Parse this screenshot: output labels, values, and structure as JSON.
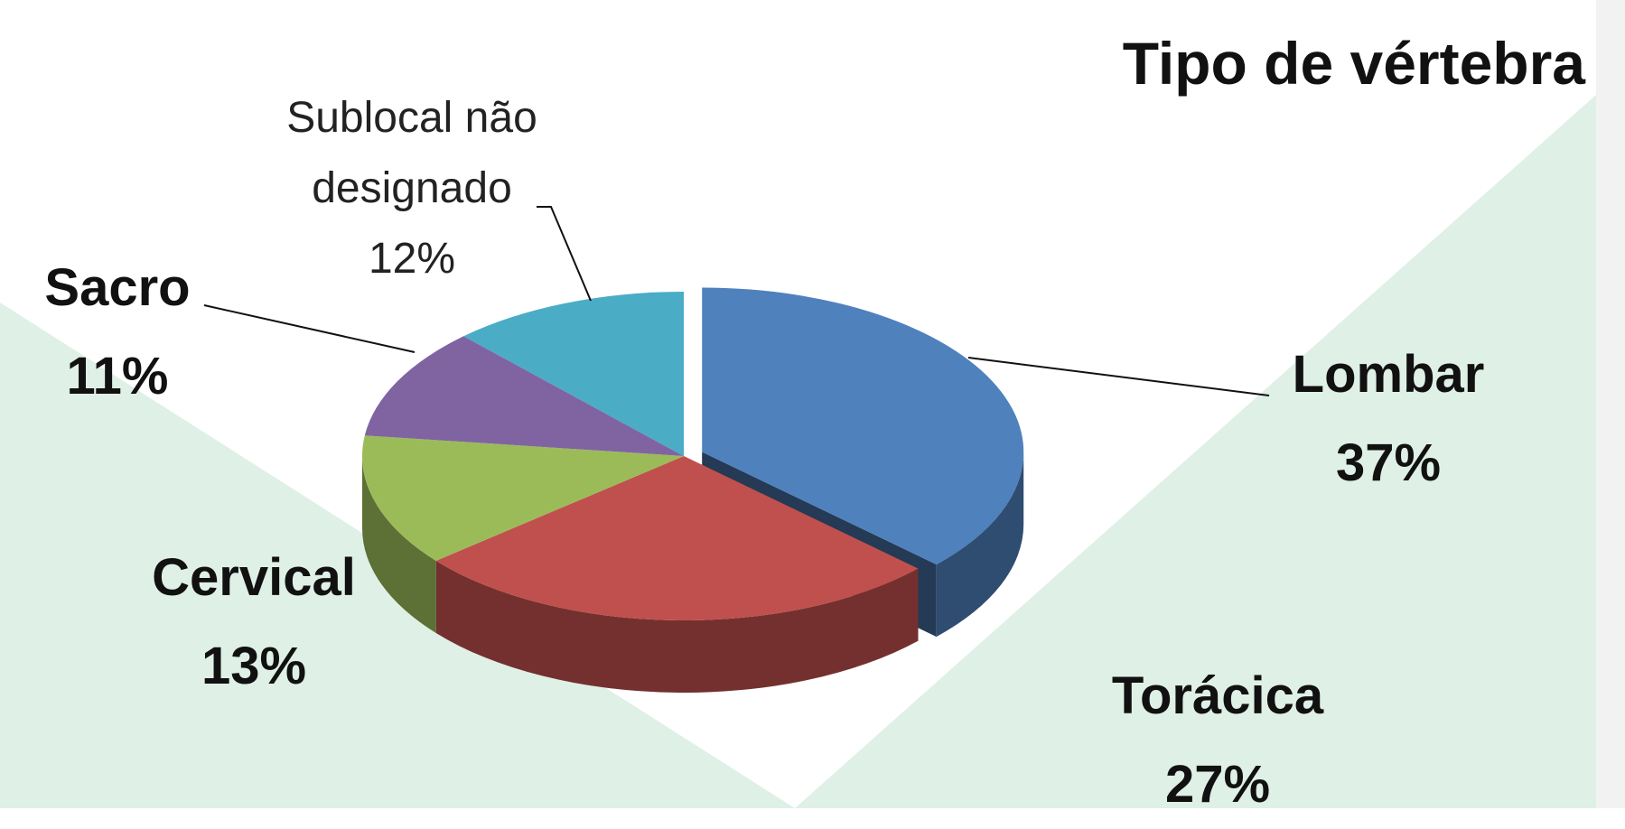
{
  "chart_data": {
    "type": "pie3d",
    "title": "Tipo de vértebra",
    "categories": [
      "Lombar",
      "Torácica",
      "Cervical",
      "Sacro",
      "Sublocal não designado"
    ],
    "values": [
      37,
      27,
      13,
      11,
      12
    ],
    "value_labels": [
      "37%",
      "27%",
      "13%",
      "11%",
      "12%"
    ],
    "colors": [
      "#4f81bd",
      "#c0504d",
      "#9bbb59",
      "#8064a2",
      "#4bacc6"
    ]
  }
}
